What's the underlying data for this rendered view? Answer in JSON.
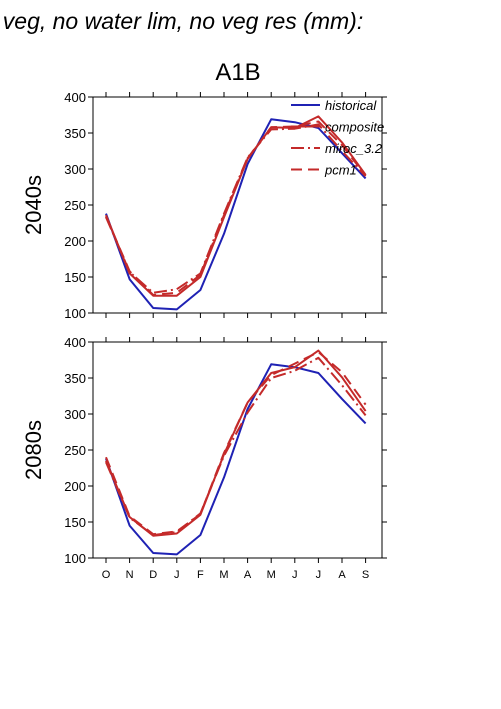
{
  "header": "f veg, no water lim, no veg res (mm):",
  "chart_data": {
    "type": "line",
    "title": "A1B",
    "categories": [
      "O",
      "N",
      "D",
      "J",
      "F",
      "M",
      "A",
      "M",
      "J",
      "J",
      "A",
      "S"
    ],
    "ylim": [
      100,
      400
    ],
    "yticks": [
      "100",
      "150",
      "200",
      "250",
      "300",
      "350",
      "400"
    ],
    "legend": {
      "placement": "top-right",
      "entries": [
        "historical",
        "composite",
        "miroc_3.2",
        "pcm1"
      ]
    },
    "colors": {
      "historical": "#1f22b4",
      "models": "#c42a2a"
    },
    "panels": [
      {
        "row_label": "2040s",
        "series": [
          {
            "name": "historical",
            "values": [
              238,
              147,
              107,
              105,
              132,
              210,
              307,
              369,
              365,
              357,
              322,
              287
            ]
          },
          {
            "name": "composite",
            "values": [
              236,
              155,
              124,
              124,
              150,
              233,
              314,
              358,
              357,
              373,
              337,
              292
            ]
          },
          {
            "name": "miroc_3.2",
            "values": [
              233,
              157,
              128,
              133,
              155,
              238,
              316,
              355,
              356,
              362,
              325,
              290
            ]
          },
          {
            "name": "pcm1",
            "values": [
              234,
              158,
              125,
              128,
              153,
              236,
              315,
              358,
              359,
              366,
              333,
              291
            ]
          }
        ]
      },
      {
        "row_label": "2080s",
        "series": [
          {
            "name": "historical",
            "values": [
              238,
              145,
              107,
              105,
              132,
              212,
              307,
              369,
              365,
              357,
              321,
              287
            ]
          },
          {
            "name": "composite",
            "values": [
              235,
              157,
              131,
              134,
              160,
              244,
              316,
              357,
              365,
              388,
              351,
              304
            ]
          },
          {
            "name": "miroc_3.2",
            "values": [
              233,
              156,
              132,
              136,
              162,
              242,
              302,
              350,
              360,
              378,
              340,
              298
            ]
          },
          {
            "name": "pcm1",
            "values": [
              240,
              158,
              133,
              137,
              161,
              246,
              316,
              354,
              370,
              386,
              358,
              313
            ]
          }
        ]
      }
    ]
  }
}
